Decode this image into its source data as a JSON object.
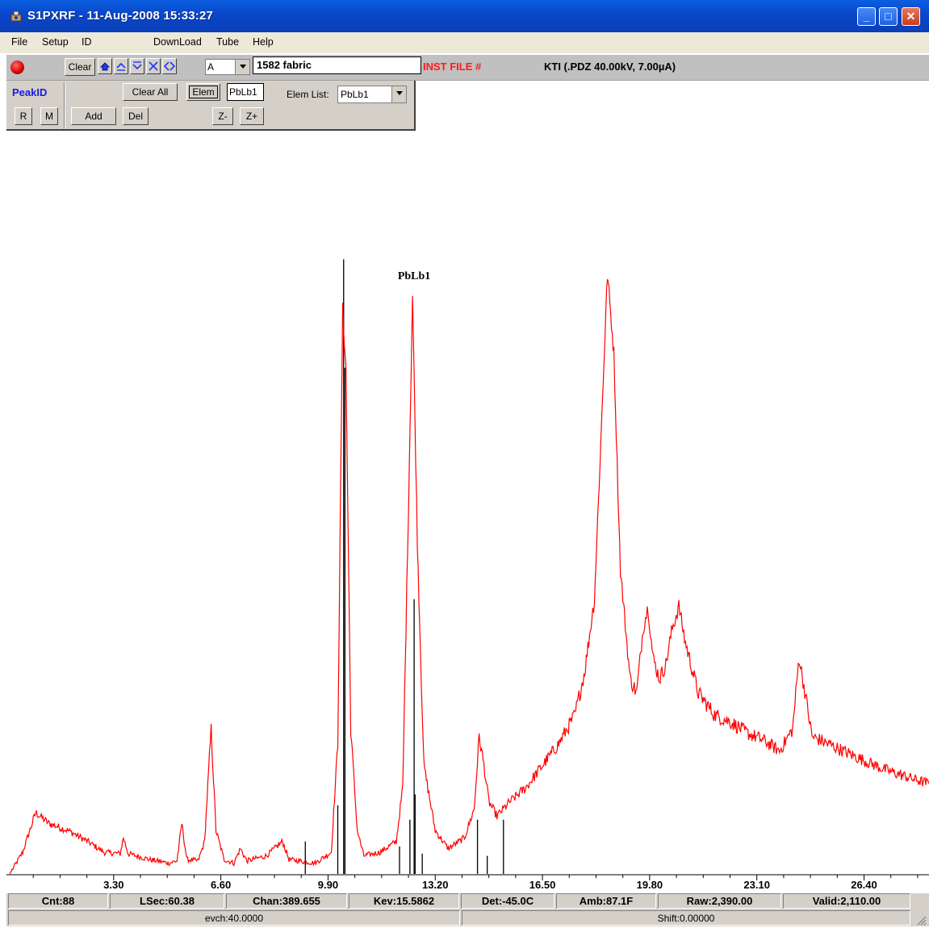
{
  "window": {
    "title": "S1PXRF - 11-Aug-2008 15:33:27",
    "app_icon": "instrument-app-icon",
    "controls": {
      "minimize": "_",
      "maximize": "□",
      "close": "✕"
    }
  },
  "menu": [
    "File",
    "Setup",
    "ID",
    "DownLoad",
    "Tube",
    "Help"
  ],
  "toolbar": {
    "clear_label": "Clear",
    "channel_value": "A",
    "sample_name": "1582 fabric",
    "inst_file_label": "INST FILE #",
    "status_text": "KTI  (.PDZ 40.00kV, 7.00µA)",
    "icons": [
      "status-led-icon",
      "home-icon",
      "zoom-up-icon",
      "zoom-down-icon",
      "contract-x-icon",
      "expand-x-icon"
    ]
  },
  "peakid": {
    "title": "PeakID",
    "clear_all_label": "Clear All",
    "elem_label": "Elem",
    "elem_value": "PbLb1",
    "elem_list_label": "Elem List:",
    "elem_list_value": "PbLb1",
    "r_label": "R",
    "m_label": "M",
    "add_label": "Add",
    "del_label": "Del",
    "z_minus_label": "Z-",
    "z_plus_label": "Z+"
  },
  "chart_data": {
    "type": "line",
    "xlabel": "",
    "ylabel": "",
    "xlim": [
      0,
      28.4
    ],
    "ylim": [
      0,
      1000
    ],
    "x_ticks": [
      "3.30",
      "6.60",
      "9.90",
      "13.20",
      "16.50",
      "19.80",
      "23.10",
      "26.40"
    ],
    "tick_values": [
      3.3,
      6.6,
      9.9,
      13.2,
      16.5,
      19.8,
      23.1,
      26.4
    ],
    "peak_label": "PbLb1",
    "peak_label_x": 12.55,
    "line_color": "#ff0000",
    "marker_color": "#000000",
    "spectrum": [
      [
        0.1,
        0
      ],
      [
        0.5,
        30
      ],
      [
        0.9,
        85
      ],
      [
        1.3,
        70
      ],
      [
        1.9,
        60
      ],
      [
        2.5,
        45
      ],
      [
        3.0,
        30
      ],
      [
        3.5,
        28
      ],
      [
        3.6,
        50
      ],
      [
        3.75,
        28
      ],
      [
        4.4,
        20
      ],
      [
        5.0,
        15
      ],
      [
        5.25,
        18
      ],
      [
        5.4,
        70
      ],
      [
        5.55,
        20
      ],
      [
        5.9,
        18
      ],
      [
        6.1,
        45
      ],
      [
        6.3,
        200
      ],
      [
        6.45,
        60
      ],
      [
        6.7,
        20
      ],
      [
        7.0,
        15
      ],
      [
        7.2,
        35
      ],
      [
        7.4,
        18
      ],
      [
        8.0,
        25
      ],
      [
        8.5,
        45
      ],
      [
        8.7,
        20
      ],
      [
        9.5,
        15
      ],
      [
        10.0,
        30
      ],
      [
        10.2,
        180
      ],
      [
        10.35,
        780
      ],
      [
        10.45,
        700
      ],
      [
        10.6,
        200
      ],
      [
        10.8,
        60
      ],
      [
        11.0,
        25
      ],
      [
        11.5,
        30
      ],
      [
        12.0,
        45
      ],
      [
        12.2,
        120
      ],
      [
        12.35,
        450
      ],
      [
        12.5,
        800
      ],
      [
        12.65,
        460
      ],
      [
        12.85,
        150
      ],
      [
        13.2,
        60
      ],
      [
        13.6,
        35
      ],
      [
        14.1,
        50
      ],
      [
        14.4,
        90
      ],
      [
        14.55,
        190
      ],
      [
        14.7,
        150
      ],
      [
        14.85,
        100
      ],
      [
        15.1,
        80
      ],
      [
        15.5,
        100
      ],
      [
        16.0,
        120
      ],
      [
        16.5,
        150
      ],
      [
        17.0,
        180
      ],
      [
        17.5,
        220
      ],
      [
        17.8,
        280
      ],
      [
        18.1,
        380
      ],
      [
        18.3,
        600
      ],
      [
        18.5,
        830
      ],
      [
        18.7,
        720
      ],
      [
        18.9,
        420
      ],
      [
        19.2,
        270
      ],
      [
        19.4,
        250
      ],
      [
        19.6,
        340
      ],
      [
        19.75,
        370
      ],
      [
        19.9,
        300
      ],
      [
        20.1,
        270
      ],
      [
        20.3,
        290
      ],
      [
        20.5,
        340
      ],
      [
        20.7,
        370
      ],
      [
        20.9,
        320
      ],
      [
        21.3,
        250
      ],
      [
        21.8,
        220
      ],
      [
        22.3,
        210
      ],
      [
        22.8,
        195
      ],
      [
        23.3,
        185
      ],
      [
        23.8,
        170
      ],
      [
        24.2,
        200
      ],
      [
        24.4,
        300
      ],
      [
        24.55,
        260
      ],
      [
        24.8,
        190
      ],
      [
        25.3,
        180
      ],
      [
        26.0,
        165
      ],
      [
        27.0,
        145
      ],
      [
        28.0,
        130
      ],
      [
        28.4,
        125
      ]
    ],
    "markers": [
      {
        "x": 9.2,
        "y": 45
      },
      {
        "x": 10.2,
        "y": 95
      },
      {
        "x": 10.38,
        "y": 850
      },
      {
        "x": 10.42,
        "y": 700
      },
      {
        "x": 12.1,
        "y": 38
      },
      {
        "x": 12.42,
        "y": 75
      },
      {
        "x": 12.55,
        "y": 380
      },
      {
        "x": 12.58,
        "y": 110
      },
      {
        "x": 12.8,
        "y": 28
      },
      {
        "x": 14.5,
        "y": 75
      },
      {
        "x": 14.8,
        "y": 25
      },
      {
        "x": 15.3,
        "y": 75
      }
    ]
  },
  "status": {
    "cnt": "Cnt:88",
    "lsec": "LSec:60.38",
    "chan": "Chan:389.655",
    "kev": "Kev:15.5862",
    "det": "Det:-45.0C",
    "amb": "Amb:87.1F",
    "raw": "Raw:2,390.00",
    "valid": "Valid:2,110.00",
    "evch": "evch:40.0000",
    "shift": "Shift:0.00000"
  }
}
